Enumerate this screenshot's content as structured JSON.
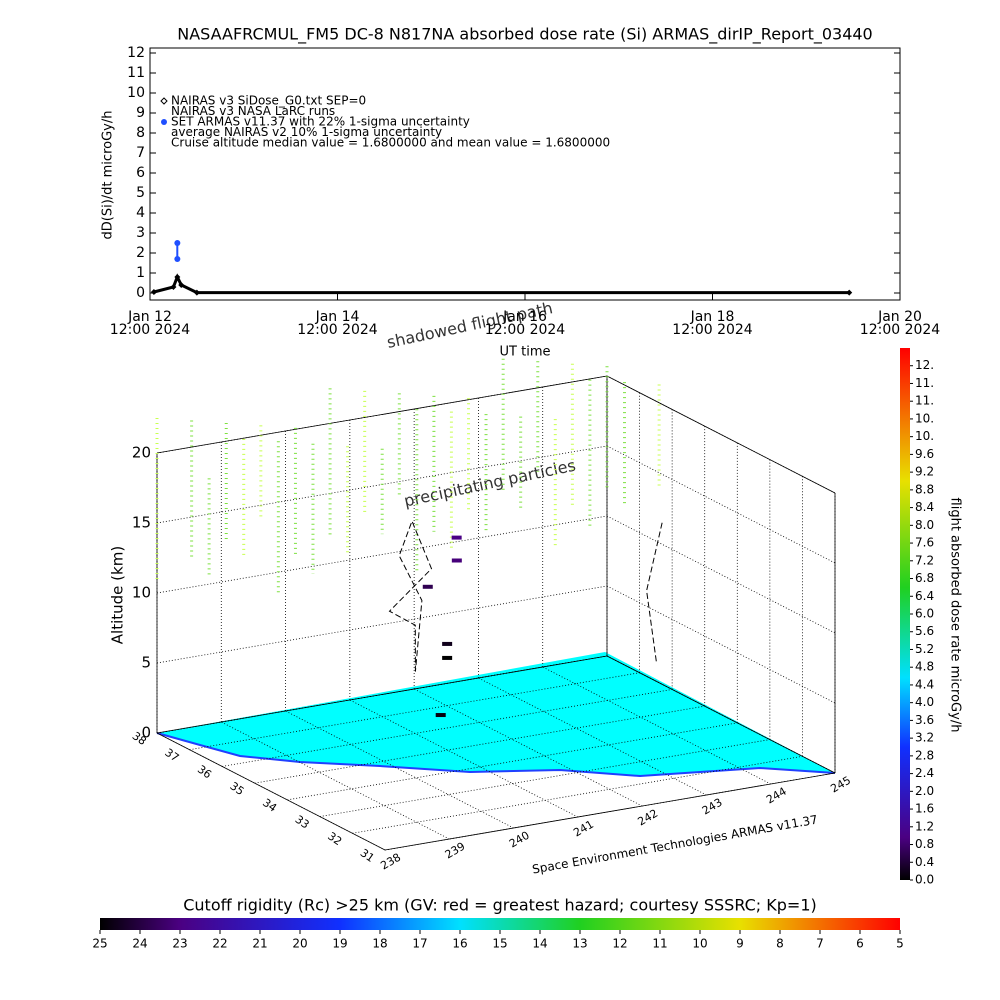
{
  "chart_data": [
    {
      "type": "line",
      "title": "NASAAFRCMUL_FM5 DC-8   N817NA absorbed dose rate (Si) ARMAS_dirIP_Report_03440",
      "ylabel": "dD(Si)/dt microGy/h",
      "xlabel": "UT time",
      "xlim": [
        "2024-01-12 12:00",
        "2024-01-20 12:00"
      ],
      "xticks": [
        {
          "value": "2024-01-12 12:00",
          "label": [
            "Jan 12",
            "12:00 2024"
          ]
        },
        {
          "value": "2024-01-14 12:00",
          "label": [
            "Jan 14",
            "12:00 2024"
          ]
        },
        {
          "value": "2024-01-16 12:00",
          "label": [
            "Jan 16",
            "12:00 2024"
          ]
        },
        {
          "value": "2024-01-18 12:00",
          "label": [
            "Jan 18",
            "12:00 2024"
          ]
        },
        {
          "value": "2024-01-20 12:00",
          "label": [
            "Jan 20",
            "12:00 2024"
          ]
        }
      ],
      "ylim": [
        0,
        12
      ],
      "yticks": [
        0,
        1,
        2,
        3,
        4,
        5,
        6,
        7,
        8,
        9,
        10,
        11,
        12
      ],
      "series": [
        {
          "name": "NAIRAS v3 SiDose_G0.txt SEP=0",
          "color": "#000000",
          "marker": "diamond",
          "x": [
            "2024-01-12 13:00",
            "2024-01-12 18:00",
            "2024-01-12 19:00",
            "2024-01-12 20:00",
            "2024-01-13 00:00",
            "2024-01-19 23:00"
          ],
          "values": [
            0.05,
            0.3,
            0.8,
            0.4,
            0.02,
            0.02
          ]
        },
        {
          "name": "SET ARMAS v11.37 with 22% 1-sigma uncertainty",
          "color": "#1f4fff",
          "marker": "circle",
          "x": [
            "2024-01-12 19:00",
            "2024-01-12 19:00"
          ],
          "values": [
            2.5,
            1.7
          ]
        }
      ],
      "notes": [
        "NAIRAS v3 NASA LaRC runs",
        "average NAIRAS v2 10% 1-sigma uncertainty",
        "Cruise altitude median value = 1.6800000 and mean value = 1.6800000"
      ]
    },
    {
      "type": "surface3d",
      "zlabel": "Altitude (km)",
      "xlim": [
        238,
        245
      ],
      "xticks": [
        238,
        239,
        240,
        241,
        242,
        243,
        244,
        245
      ],
      "ylim": [
        31,
        38
      ],
      "yticks": [
        31,
        32,
        33,
        34,
        35,
        36,
        37,
        38
      ],
      "zlim": [
        0,
        20
      ],
      "zticks": [
        0,
        5,
        10,
        15,
        20
      ],
      "annotations": [
        "shadowed flight path",
        "precipitating particles",
        "Space Environment Technologies ARMAS v11.37"
      ],
      "paths": [
        {
          "color": "#000000",
          "x": [
            240.5,
            240.6,
            240.3,
            240.8,
            240.7,
            240.4,
            240.6,
            240.5
          ],
          "y": [
            35,
            35.2,
            35.4,
            35.1,
            35.5,
            35.3,
            35.0,
            35
          ],
          "z": [
            6,
            9,
            10,
            13,
            16,
            14,
            11,
            6
          ]
        },
        {
          "color": "#000000",
          "x": [
            244.5,
            244.4,
            244.6
          ],
          "y": [
            35.5,
            35.6,
            35.5
          ],
          "z": [
            3,
            8,
            13
          ]
        }
      ],
      "points": {
        "x": [
          241.5,
          241.5,
          241.3,
          241.6,
          241.8,
          241.4
        ],
        "y": [
          36,
          36,
          36.2,
          35.9,
          36.3,
          36
        ],
        "z": [
          5,
          6,
          10,
          12,
          13,
          1
        ],
        "values": [
          0.0,
          0.2,
          0.6,
          0.9,
          1.0,
          0.1
        ]
      },
      "colorbar": {
        "label": "flight absorbed dose rate microGy/h",
        "lim": [
          0,
          12
        ],
        "ticks": [
          {
            "value": 0,
            "label": "0.0"
          },
          0.4,
          0.8,
          1.2,
          1.6,
          {
            "value": 2,
            "label": "2.0"
          },
          2.4,
          2.8,
          3.2,
          3.6,
          {
            "value": 4,
            "label": "4.0"
          },
          4.4,
          4.8,
          5.2,
          5.6,
          {
            "value": 6,
            "label": "6.0"
          },
          6.4,
          6.8,
          7.2,
          7.6,
          {
            "value": 8,
            "label": "8.0"
          },
          8.4,
          8.8,
          9.2,
          9.6,
          {
            "value": 10,
            "label": "10."
          },
          {
            "value": 10.4,
            "label": "10."
          },
          {
            "value": 10.8,
            "label": "11."
          },
          {
            "value": 11.2,
            "label": "11."
          },
          {
            "value": 11.6,
            "label": "12."
          }
        ]
      },
      "rigidity_bar": {
        "label": "Cutoff rigidity (Rc) >25 km (GV: red = greatest hazard; courtesy SSSRC; Kp=1)",
        "lim": [
          25,
          5
        ],
        "ticks": [
          25,
          24,
          23,
          22,
          21,
          20,
          19,
          18,
          17,
          16,
          15,
          14,
          13,
          12,
          11,
          10,
          9,
          8,
          7,
          6,
          5
        ]
      }
    }
  ]
}
